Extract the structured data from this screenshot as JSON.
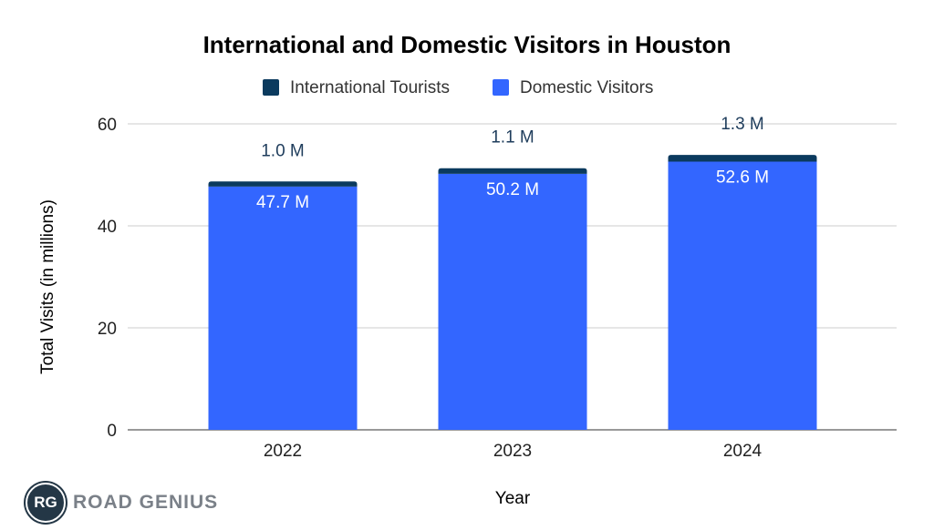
{
  "chart_data": {
    "type": "bar",
    "stacked": true,
    "title": "International and Domestic Visitors in Houston",
    "xlabel": "Year",
    "ylabel": "Total Visits (in millions)",
    "ylim": [
      0,
      60
    ],
    "yticks": [
      0,
      20,
      40,
      60
    ],
    "grid": true,
    "legend_position": "top",
    "categories": [
      "2022",
      "2023",
      "2024"
    ],
    "series": [
      {
        "name": "Domestic Visitors",
        "color": "#3366ff",
        "values": [
          47.7,
          50.2,
          52.6
        ],
        "labels": [
          "47.7 M",
          "50.2 M",
          "52.6 M"
        ]
      },
      {
        "name": "International Tourists",
        "color": "#0b3a5e",
        "values": [
          1.0,
          1.1,
          1.3
        ],
        "labels": [
          "1.0 M",
          "1.1 M",
          "1.3 M"
        ]
      }
    ]
  },
  "logo": {
    "initials": "RG",
    "text": "ROAD GENIUS"
  }
}
